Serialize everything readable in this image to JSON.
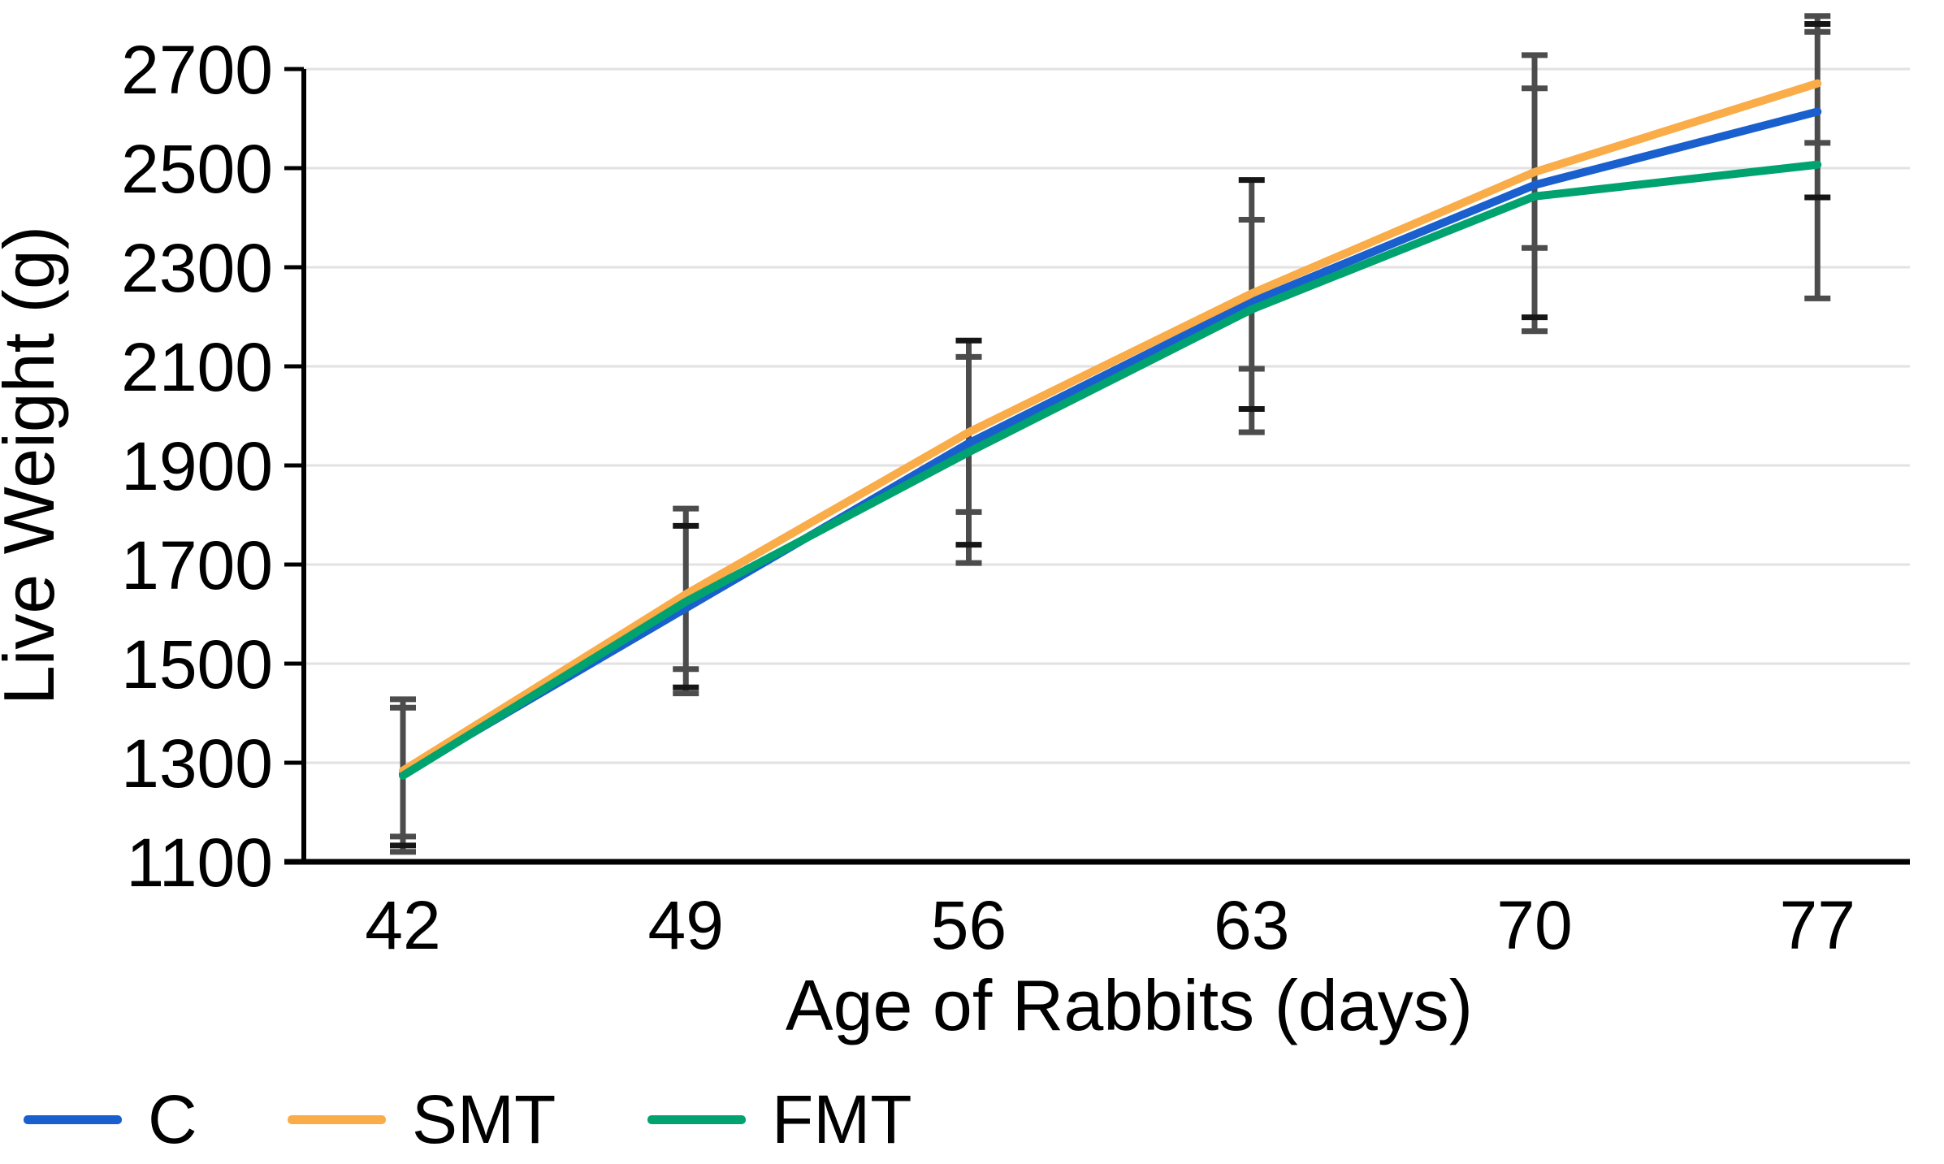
{
  "chart_data": {
    "type": "line",
    "title": "",
    "xlabel": "Age of Rabbits (days)",
    "ylabel": "Live Weight (g)",
    "x": [
      42,
      49,
      56,
      63,
      70,
      77
    ],
    "xlim": [
      39.5,
      79.3
    ],
    "ylim": [
      1100,
      2700
    ],
    "yticks": [
      1100,
      1300,
      1500,
      1700,
      1900,
      2100,
      2300,
      2500,
      2700
    ],
    "grid": "horizontal-only",
    "legend_position": "bottom-left",
    "background_color": "#ffffff",
    "grid_color": "#e2e2e2",
    "axis_color": "#000000",
    "series": [
      {
        "name": "C",
        "color": "#1A5FCE",
        "values": [
          1278,
          1612,
          1945,
          2230,
          2466,
          2614
        ]
      },
      {
        "name": "SMT",
        "color": "#F9AC48",
        "values": [
          1284,
          1640,
          1967,
          2247,
          2492,
          2671
        ]
      },
      {
        "name": "FMT",
        "color": "#00A36F",
        "values": [
          1274,
          1625,
          1927,
          2215,
          2443,
          2507
        ]
      }
    ],
    "error_bars": {
      "color": "#4c4c4c",
      "dark_cap_color": "#161616",
      "groups": [
        {
          "x": 42,
          "low": 1120,
          "high": 1428,
          "caps": [
            1120,
            1133,
            1151,
            1411,
            1428
          ],
          "dark_caps": [
            1133
          ]
        },
        {
          "x": 49,
          "low": 1440,
          "high": 1813,
          "caps": [
            1440,
            1452,
            1489,
            1778,
            1813
          ],
          "dark_caps": [
            1452,
            1778
          ]
        },
        {
          "x": 56,
          "low": 1703,
          "high": 2152,
          "caps": [
            1703,
            1740,
            1806,
            2119,
            2152
          ],
          "dark_caps": [
            1740,
            2152
          ]
        },
        {
          "x": 63,
          "low": 1967,
          "high": 2476,
          "caps": [
            1967,
            2014,
            2095,
            2396,
            2476
          ],
          "dark_caps": [
            2014,
            2476
          ]
        },
        {
          "x": 70,
          "low": 2171,
          "high": 2728,
          "caps": [
            2171,
            2199,
            2339,
            2661,
            2728
          ],
          "dark_caps": [
            2199
          ]
        },
        {
          "x": 77,
          "low": 2237,
          "high": 2807,
          "caps": [
            2237,
            2441,
            2551,
            2775,
            2791,
            2807
          ],
          "dark_caps": [
            2441,
            2791
          ]
        }
      ]
    }
  },
  "legend": {
    "items": [
      {
        "label": "C",
        "color": "#1A5FCE"
      },
      {
        "label": "SMT",
        "color": "#F9AC48"
      },
      {
        "label": "FMT",
        "color": "#00A36F"
      }
    ]
  }
}
